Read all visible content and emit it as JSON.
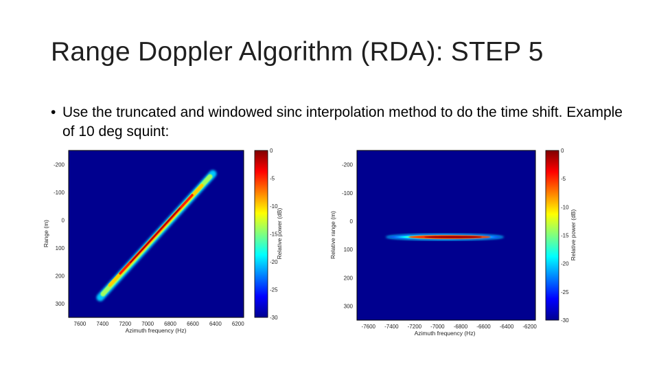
{
  "slide": {
    "title": "Range Doppler Algorithm (RDA): STEP 5",
    "bullet": "Use the truncated and windowed sinc interpolation method to do the time shift. Example of 10 deg squint:"
  },
  "chart_data": [
    {
      "type": "heatmap",
      "title": "",
      "xlabel": "Azimuth frequency (Hz)",
      "ylabel": "Range (m)",
      "xticks": [
        7600,
        7400,
        7200,
        7000,
        6800,
        6600,
        6400,
        6200
      ],
      "yticks": [
        -200,
        -100,
        0,
        100,
        200,
        300
      ],
      "xlim": [
        7700,
        6150
      ],
      "ylim": [
        -250,
        350
      ],
      "colorbar": {
        "label": "Relative power (dB)",
        "ticks": [
          0,
          -5,
          -10,
          -15,
          -20,
          -25,
          -30
        ],
        "range": [
          -30,
          0
        ]
      },
      "feature": {
        "shape": "diagonal-line",
        "start": [
          7440,
          290
        ],
        "end": [
          6580,
          -160
        ]
      }
    },
    {
      "type": "heatmap",
      "title": "",
      "xlabel": "Azimuth frequency (Hz)",
      "ylabel": "Relative range (m)",
      "xticks": [
        "-7600",
        "-7400",
        "-7200",
        "-7000",
        "-6800",
        "-6600",
        "-6400",
        "-6200"
      ],
      "yticks": [
        -200,
        -100,
        0,
        100,
        200,
        300
      ],
      "xlim": [
        -7700,
        -6150
      ],
      "ylim": [
        -250,
        350
      ],
      "colorbar": {
        "label": "Relative power (dB)",
        "ticks": [
          0,
          -5,
          -10,
          -15,
          -20,
          -25,
          -30
        ],
        "range": [
          -30,
          0
        ]
      },
      "feature": {
        "shape": "horizontal-ellipse",
        "x_range": [
          -7640,
          -6530
        ],
        "y": 55
      }
    }
  ]
}
